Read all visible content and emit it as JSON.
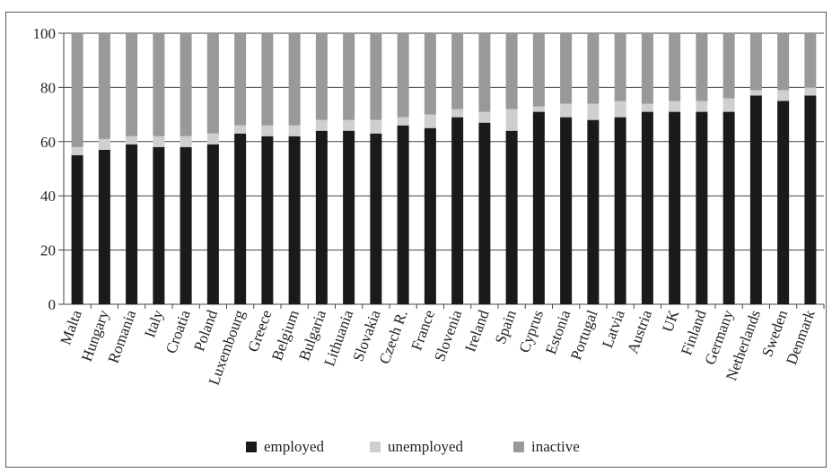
{
  "chart_data": {
    "type": "bar",
    "stacked": true,
    "categories": [
      "Malta",
      "Hungary",
      "Romania",
      "Italy",
      "Croatia",
      "Poland",
      "Luxembourg",
      "Greece",
      "Belgium",
      "Bulgaria",
      "Lithuania",
      "Slovakia",
      "Czech R.",
      "France",
      "Slovenia",
      "Ireland",
      "Spain",
      "Cyprus",
      "Estonia",
      "Portugal",
      "Latvia",
      "Austria",
      "UK",
      "Finland",
      "Germany",
      "Netherlands",
      "Sweden",
      "Denmark"
    ],
    "series": [
      {
        "name": "employed",
        "color": "#1a1a1a",
        "values": [
          55,
          57,
          59,
          58,
          58,
          59,
          63,
          62,
          62,
          64,
          64,
          63,
          66,
          65,
          69,
          67,
          64,
          71,
          69,
          68,
          69,
          71,
          71,
          71,
          71,
          77,
          75,
          77
        ]
      },
      {
        "name": "unemployed",
        "color": "#cfcfcf",
        "values": [
          3,
          4,
          3,
          4,
          4,
          4,
          3,
          4,
          4,
          4,
          4,
          5,
          3,
          5,
          3,
          4,
          8,
          2,
          5,
          6,
          6,
          3,
          4,
          4,
          5,
          2,
          4,
          3
        ]
      },
      {
        "name": "inactive",
        "color": "#999999",
        "values": [
          42,
          39,
          38,
          38,
          38,
          37,
          34,
          34,
          34,
          32,
          32,
          32,
          31,
          30,
          28,
          29,
          28,
          27,
          26,
          26,
          25,
          26,
          25,
          25,
          24,
          21,
          21,
          20
        ]
      }
    ],
    "yticks": [
      "0",
      "20",
      "40",
      "60",
      "80",
      "100"
    ],
    "ylim": [
      0,
      100
    ],
    "grid": true,
    "legend_position": "bottom",
    "title": "",
    "xlabel": "",
    "ylabel": ""
  }
}
